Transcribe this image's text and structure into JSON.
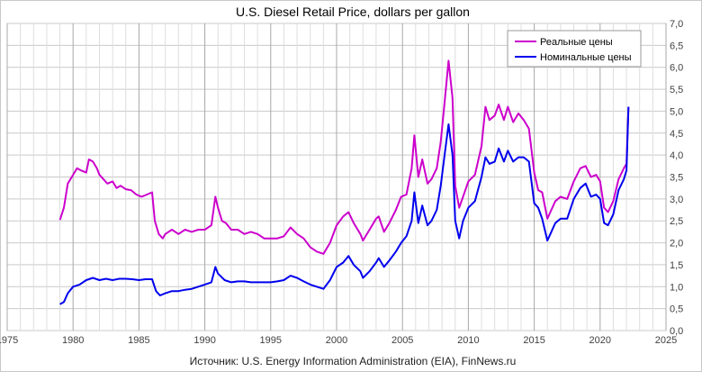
{
  "chart_data": {
    "type": "line",
    "title": "U.S. Diesel Retail Price, dollars per gallon",
    "source": "Источник: U.S. Energy Information Administration (EIA), FinNews.ru",
    "xlabel": "",
    "ylabel": "",
    "xlim": [
      1975,
      2025
    ],
    "ylim": [
      0,
      7
    ],
    "x_ticks": [
      "1975",
      "1980",
      "1985",
      "1990",
      "1995",
      "2000",
      "2005",
      "2010",
      "2015",
      "2020",
      "2025"
    ],
    "y_ticks": [
      "0,0",
      "0,5",
      "1,0",
      "1,5",
      "2,0",
      "2,5",
      "3,0",
      "3,5",
      "4,0",
      "4,5",
      "5,0",
      "5,5",
      "6,0",
      "6,5",
      "7,0"
    ],
    "grid": true,
    "legend_position": "top-right",
    "series": [
      {
        "name": "Реальные цены",
        "color": "#cc00cc",
        "points": [
          [
            1979.0,
            2.52
          ],
          [
            1979.3,
            2.8
          ],
          [
            1979.6,
            3.35
          ],
          [
            1980.0,
            3.55
          ],
          [
            1980.3,
            3.7
          ],
          [
            1980.6,
            3.65
          ],
          [
            1981.0,
            3.6
          ],
          [
            1981.2,
            3.9
          ],
          [
            1981.5,
            3.85
          ],
          [
            1981.8,
            3.7
          ],
          [
            1982.0,
            3.55
          ],
          [
            1982.3,
            3.45
          ],
          [
            1982.6,
            3.35
          ],
          [
            1983.0,
            3.4
          ],
          [
            1983.3,
            3.25
          ],
          [
            1983.6,
            3.3
          ],
          [
            1984.0,
            3.22
          ],
          [
            1984.4,
            3.2
          ],
          [
            1984.8,
            3.1
          ],
          [
            1985.2,
            3.05
          ],
          [
            1985.6,
            3.1
          ],
          [
            1986.0,
            3.15
          ],
          [
            1986.2,
            2.5
          ],
          [
            1986.5,
            2.2
          ],
          [
            1986.8,
            2.1
          ],
          [
            1987.0,
            2.2
          ],
          [
            1987.5,
            2.3
          ],
          [
            1988.0,
            2.2
          ],
          [
            1988.5,
            2.3
          ],
          [
            1989.0,
            2.25
          ],
          [
            1989.5,
            2.3
          ],
          [
            1990.0,
            2.3
          ],
          [
            1990.5,
            2.4
          ],
          [
            1990.8,
            3.05
          ],
          [
            1991.0,
            2.8
          ],
          [
            1991.3,
            2.5
          ],
          [
            1991.6,
            2.45
          ],
          [
            1992.0,
            2.3
          ],
          [
            1992.5,
            2.3
          ],
          [
            1993.0,
            2.2
          ],
          [
            1993.5,
            2.25
          ],
          [
            1994.0,
            2.2
          ],
          [
            1994.5,
            2.1
          ],
          [
            1995.0,
            2.1
          ],
          [
            1995.5,
            2.1
          ],
          [
            1996.0,
            2.15
          ],
          [
            1996.5,
            2.35
          ],
          [
            1997.0,
            2.2
          ],
          [
            1997.5,
            2.1
          ],
          [
            1998.0,
            1.9
          ],
          [
            1998.5,
            1.8
          ],
          [
            1999.0,
            1.75
          ],
          [
            1999.5,
            2.0
          ],
          [
            2000.0,
            2.4
          ],
          [
            2000.5,
            2.6
          ],
          [
            2000.9,
            2.7
          ],
          [
            2001.3,
            2.45
          ],
          [
            2001.8,
            2.2
          ],
          [
            2002.0,
            2.05
          ],
          [
            2002.5,
            2.3
          ],
          [
            2003.0,
            2.55
          ],
          [
            2003.2,
            2.6
          ],
          [
            2003.6,
            2.25
          ],
          [
            2004.0,
            2.45
          ],
          [
            2004.5,
            2.75
          ],
          [
            2004.9,
            3.05
          ],
          [
            2005.3,
            3.1
          ],
          [
            2005.7,
            3.7
          ],
          [
            2005.9,
            4.45
          ],
          [
            2006.2,
            3.5
          ],
          [
            2006.5,
            3.9
          ],
          [
            2006.9,
            3.35
          ],
          [
            2007.2,
            3.45
          ],
          [
            2007.6,
            3.7
          ],
          [
            2007.9,
            4.3
          ],
          [
            2008.2,
            5.2
          ],
          [
            2008.5,
            6.15
          ],
          [
            2008.8,
            5.3
          ],
          [
            2009.0,
            3.3
          ],
          [
            2009.3,
            2.8
          ],
          [
            2009.6,
            3.05
          ],
          [
            2010.0,
            3.4
          ],
          [
            2010.5,
            3.55
          ],
          [
            2011.0,
            4.2
          ],
          [
            2011.3,
            5.1
          ],
          [
            2011.6,
            4.8
          ],
          [
            2012.0,
            4.9
          ],
          [
            2012.3,
            5.15
          ],
          [
            2012.7,
            4.8
          ],
          [
            2013.0,
            5.1
          ],
          [
            2013.4,
            4.75
          ],
          [
            2013.8,
            4.95
          ],
          [
            2014.2,
            4.8
          ],
          [
            2014.6,
            4.6
          ],
          [
            2015.0,
            3.6
          ],
          [
            2015.3,
            3.2
          ],
          [
            2015.6,
            3.15
          ],
          [
            2016.0,
            2.55
          ],
          [
            2016.3,
            2.75
          ],
          [
            2016.6,
            2.95
          ],
          [
            2017.0,
            3.05
          ],
          [
            2017.5,
            3.0
          ],
          [
            2018.0,
            3.4
          ],
          [
            2018.5,
            3.7
          ],
          [
            2018.9,
            3.75
          ],
          [
            2019.3,
            3.5
          ],
          [
            2019.7,
            3.55
          ],
          [
            2020.0,
            3.4
          ],
          [
            2020.3,
            2.8
          ],
          [
            2020.6,
            2.7
          ],
          [
            2021.0,
            2.95
          ],
          [
            2021.4,
            3.45
          ],
          [
            2021.8,
            3.7
          ],
          [
            2022.0,
            3.8
          ],
          [
            2022.15,
            5.1
          ]
        ]
      },
      {
        "name": "Номинальные цены",
        "color": "#0000ee",
        "points": [
          [
            1979.0,
            0.6
          ],
          [
            1979.3,
            0.65
          ],
          [
            1979.6,
            0.85
          ],
          [
            1980.0,
            1.0
          ],
          [
            1980.5,
            1.05
          ],
          [
            1981.0,
            1.15
          ],
          [
            1981.5,
            1.2
          ],
          [
            1982.0,
            1.15
          ],
          [
            1982.5,
            1.18
          ],
          [
            1983.0,
            1.15
          ],
          [
            1983.5,
            1.18
          ],
          [
            1984.0,
            1.18
          ],
          [
            1984.5,
            1.17
          ],
          [
            1985.0,
            1.15
          ],
          [
            1985.5,
            1.17
          ],
          [
            1986.0,
            1.17
          ],
          [
            1986.3,
            0.9
          ],
          [
            1986.6,
            0.8
          ],
          [
            1987.0,
            0.85
          ],
          [
            1987.5,
            0.9
          ],
          [
            1988.0,
            0.9
          ],
          [
            1988.5,
            0.93
          ],
          [
            1989.0,
            0.95
          ],
          [
            1989.5,
            1.0
          ],
          [
            1990.0,
            1.05
          ],
          [
            1990.5,
            1.1
          ],
          [
            1990.8,
            1.45
          ],
          [
            1991.0,
            1.3
          ],
          [
            1991.5,
            1.15
          ],
          [
            1992.0,
            1.1
          ],
          [
            1992.5,
            1.12
          ],
          [
            1993.0,
            1.12
          ],
          [
            1993.5,
            1.1
          ],
          [
            1994.0,
            1.1
          ],
          [
            1994.5,
            1.1
          ],
          [
            1995.0,
            1.1
          ],
          [
            1995.5,
            1.12
          ],
          [
            1996.0,
            1.15
          ],
          [
            1996.5,
            1.25
          ],
          [
            1997.0,
            1.2
          ],
          [
            1997.5,
            1.12
          ],
          [
            1998.0,
            1.05
          ],
          [
            1998.5,
            1.0
          ],
          [
            1999.0,
            0.95
          ],
          [
            1999.5,
            1.15
          ],
          [
            2000.0,
            1.45
          ],
          [
            2000.5,
            1.55
          ],
          [
            2000.9,
            1.7
          ],
          [
            2001.3,
            1.5
          ],
          [
            2001.8,
            1.35
          ],
          [
            2002.0,
            1.2
          ],
          [
            2002.5,
            1.35
          ],
          [
            2003.0,
            1.55
          ],
          [
            2003.2,
            1.65
          ],
          [
            2003.6,
            1.45
          ],
          [
            2004.0,
            1.6
          ],
          [
            2004.5,
            1.8
          ],
          [
            2004.9,
            2.0
          ],
          [
            2005.3,
            2.15
          ],
          [
            2005.7,
            2.5
          ],
          [
            2005.9,
            3.15
          ],
          [
            2006.2,
            2.45
          ],
          [
            2006.5,
            2.85
          ],
          [
            2006.9,
            2.4
          ],
          [
            2007.2,
            2.5
          ],
          [
            2007.6,
            2.75
          ],
          [
            2007.9,
            3.3
          ],
          [
            2008.2,
            4.0
          ],
          [
            2008.5,
            4.7
          ],
          [
            2008.8,
            4.0
          ],
          [
            2009.0,
            2.5
          ],
          [
            2009.3,
            2.1
          ],
          [
            2009.6,
            2.5
          ],
          [
            2010.0,
            2.8
          ],
          [
            2010.5,
            2.95
          ],
          [
            2011.0,
            3.5
          ],
          [
            2011.3,
            3.95
          ],
          [
            2011.6,
            3.8
          ],
          [
            2012.0,
            3.85
          ],
          [
            2012.3,
            4.15
          ],
          [
            2012.7,
            3.85
          ],
          [
            2013.0,
            4.1
          ],
          [
            2013.4,
            3.85
          ],
          [
            2013.8,
            3.95
          ],
          [
            2014.2,
            3.95
          ],
          [
            2014.6,
            3.85
          ],
          [
            2015.0,
            2.9
          ],
          [
            2015.3,
            2.8
          ],
          [
            2015.6,
            2.55
          ],
          [
            2016.0,
            2.05
          ],
          [
            2016.3,
            2.25
          ],
          [
            2016.6,
            2.45
          ],
          [
            2017.0,
            2.55
          ],
          [
            2017.5,
            2.55
          ],
          [
            2018.0,
            3.0
          ],
          [
            2018.5,
            3.25
          ],
          [
            2018.9,
            3.35
          ],
          [
            2019.3,
            3.05
          ],
          [
            2019.7,
            3.1
          ],
          [
            2020.0,
            3.0
          ],
          [
            2020.3,
            2.45
          ],
          [
            2020.6,
            2.4
          ],
          [
            2021.0,
            2.65
          ],
          [
            2021.4,
            3.2
          ],
          [
            2021.8,
            3.45
          ],
          [
            2022.0,
            3.65
          ],
          [
            2022.15,
            5.1
          ]
        ]
      }
    ]
  }
}
